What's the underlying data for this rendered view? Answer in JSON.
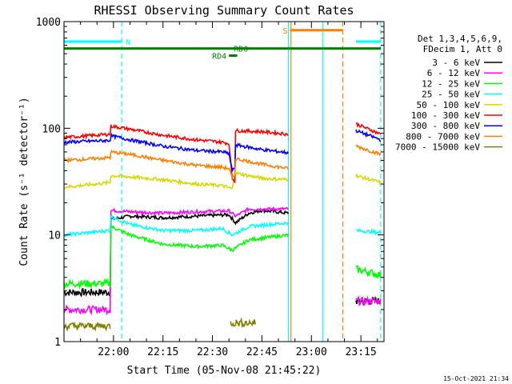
{
  "chart_data": {
    "type": "line",
    "title": "RHESSI Observing Summary Count Rates",
    "xlabel": "Start Time (05-Nov-08 21:45:22)",
    "ylabel": "Count Rate (s⁻¹ detector⁻¹)",
    "yscale": "log",
    "ylim": [
      1,
      1000
    ],
    "x_unit": "minutes after 21:45",
    "xlim": [
      0,
      97
    ],
    "xticks": [
      {
        "value": 15,
        "label": "22:00"
      },
      {
        "value": 30,
        "label": "22:15"
      },
      {
        "value": 45,
        "label": "22:30"
      },
      {
        "value": 60,
        "label": "22:45"
      },
      {
        "value": 75,
        "label": "23:00"
      },
      {
        "value": 90,
        "label": "23:15"
      }
    ],
    "yticks": [
      {
        "value": 1,
        "label": "1"
      },
      {
        "value": 10,
        "label": "10"
      },
      {
        "value": 100,
        "label": "100"
      },
      {
        "value": 1000,
        "label": "1000"
      }
    ],
    "legend": {
      "placement": "right",
      "header": [
        "Det 1,3,4,5,6,9,",
        "FDecim 1, Att 0"
      ]
    },
    "flags": [
      {
        "label": "N",
        "color": "#00ffff",
        "y": 650,
        "segments": [
          [
            0,
            17.5
          ],
          [
            88.5,
            96
          ]
        ]
      },
      {
        "label": "RD0",
        "color": "#008000",
        "y": 560,
        "segments": [
          [
            0,
            96
          ]
        ]
      },
      {
        "label": "RD4",
        "color": "#008000",
        "y": 480,
        "segments": [
          [
            50,
            52.5
          ]
        ]
      },
      {
        "label": "S",
        "color": "#ff8000",
        "y": 830,
        "segments": [
          [
            68.5,
            84.5
          ]
        ]
      }
    ],
    "vlines": [
      {
        "x": 0,
        "color": "#00ffff",
        "style": "solid"
      },
      {
        "x": 17.5,
        "color": "#00ffff",
        "style": "dashed"
      },
      {
        "x": 68,
        "color": "#00ffff",
        "style": "solid"
      },
      {
        "x": 68.8,
        "color": "#ff8000",
        "style": "solid"
      },
      {
        "x": 78.5,
        "color": "#00ffff",
        "style": "solid"
      },
      {
        "x": 84.5,
        "color": "#ff8000",
        "style": "dashed"
      },
      {
        "x": 96,
        "color": "#00ffff",
        "style": "dashed"
      }
    ],
    "series": [
      {
        "name": "3 - 6 keV",
        "color": "#000000",
        "segments": [
          [
            [
              0,
              2.9
            ],
            [
              14,
              2.9
            ],
            [
              14.2,
              14
            ],
            [
              20,
              15
            ],
            [
              30,
              14.5
            ],
            [
              40,
              15
            ],
            [
              50,
              15.5
            ],
            [
              52,
              13
            ],
            [
              56,
              16
            ],
            [
              60,
              17
            ],
            [
              68,
              16
            ]
          ],
          [
            [
              88.5,
              2.4
            ],
            [
              96,
              2.4
            ]
          ]
        ]
      },
      {
        "name": "6 - 12 keV",
        "color": "#ff00ff",
        "segments": [
          [
            [
              0,
              2.0
            ],
            [
              14,
              2.0
            ],
            [
              14.2,
              17
            ],
            [
              20,
              16.5
            ],
            [
              30,
              16
            ],
            [
              40,
              16.5
            ],
            [
              50,
              16.8
            ],
            [
              52,
              15
            ],
            [
              56,
              17.5
            ],
            [
              60,
              17.5
            ],
            [
              68,
              17.5
            ]
          ],
          [
            [
              88.5,
              2.4
            ],
            [
              96,
              2.4
            ]
          ]
        ]
      },
      {
        "name": "12 - 25 keV",
        "color": "#00ff00",
        "segments": [
          [
            [
              0,
              3.5
            ],
            [
              14,
              3.5
            ],
            [
              14.2,
              12
            ],
            [
              20,
              10
            ],
            [
              30,
              8.2
            ],
            [
              40,
              7.8
            ],
            [
              48,
              8
            ],
            [
              51,
              7.2
            ],
            [
              56,
              9
            ],
            [
              62,
              9.5
            ],
            [
              68,
              10
            ]
          ],
          [
            [
              88.5,
              4.8
            ],
            [
              96,
              4.2
            ]
          ]
        ]
      },
      {
        "name": "25 - 50 keV",
        "color": "#00ffff",
        "segments": [
          [
            [
              0,
              10
            ],
            [
              14,
              11
            ],
            [
              14.2,
              15
            ],
            [
              20,
              12.5
            ],
            [
              30,
              11
            ],
            [
              40,
              11
            ],
            [
              48,
              11.5
            ],
            [
              51,
              10
            ],
            [
              56,
              12
            ],
            [
              62,
              12.5
            ],
            [
              68,
              13
            ]
          ],
          [
            [
              88.5,
              11
            ],
            [
              96,
              10.5
            ]
          ]
        ]
      },
      {
        "name": "50 - 100 keV",
        "color": "#d8d800",
        "segments": [
          [
            [
              0,
              28
            ],
            [
              14,
              31
            ],
            [
              14.2,
              36
            ],
            [
              20,
              35
            ],
            [
              30,
              33
            ],
            [
              40,
              30
            ],
            [
              48,
              29
            ],
            [
              51,
              27
            ],
            [
              52,
              38
            ],
            [
              60,
              34
            ],
            [
              68,
              33
            ]
          ],
          [
            [
              88.5,
              36
            ],
            [
              96,
              31
            ]
          ]
        ]
      },
      {
        "name": "100 - 300 keV",
        "color": "#ff0000",
        "segments": [
          [
            [
              0,
              82
            ],
            [
              14,
              88
            ],
            [
              14.2,
              105
            ],
            [
              20,
              98
            ],
            [
              30,
              86
            ],
            [
              40,
              78
            ],
            [
              48,
              74
            ],
            [
              50,
              72
            ],
            [
              51,
              34
            ],
            [
              51.8,
              32
            ],
            [
              52,
              95
            ],
            [
              60,
              93
            ],
            [
              68,
              88
            ]
          ],
          [
            [
              88.5,
              110
            ],
            [
              96,
              88
            ]
          ]
        ]
      },
      {
        "name": "300 - 800 keV",
        "color": "#0000ff",
        "segments": [
          [
            [
              0,
              74
            ],
            [
              14,
              77
            ],
            [
              14.2,
              85
            ],
            [
              20,
              78
            ],
            [
              30,
              68
            ],
            [
              40,
              62
            ],
            [
              48,
              60
            ],
            [
              50,
              58
            ],
            [
              51,
              40
            ],
            [
              51.8,
              42
            ],
            [
              52,
              70
            ],
            [
              60,
              63
            ],
            [
              68,
              59
            ]
          ],
          [
            [
              88.5,
              95
            ],
            [
              96,
              78
            ]
          ]
        ]
      },
      {
        "name": "800 - 7000 keV",
        "color": "#ff8000",
        "segments": [
          [
            [
              0,
              50
            ],
            [
              14,
              53
            ],
            [
              14.2,
              60
            ],
            [
              20,
              57
            ],
            [
              30,
              50
            ],
            [
              40,
              45
            ],
            [
              48,
              43
            ],
            [
              50,
              42
            ],
            [
              51,
              34
            ],
            [
              51.8,
              36
            ],
            [
              52,
              52
            ],
            [
              60,
              46
            ],
            [
              68,
              42
            ]
          ],
          [
            [
              88.5,
              68
            ],
            [
              96,
              57
            ]
          ]
        ]
      },
      {
        "name": "7000 - 15000 keV",
        "color": "#808000",
        "segments": [
          [
            [
              0,
              1.4
            ],
            [
              14,
              1.4
            ]
          ],
          [
            [
              50.5,
              1.5
            ],
            [
              58,
              1.5
            ]
          ]
        ]
      }
    ],
    "timestamp": "15-Oct-2021 21:34"
  }
}
